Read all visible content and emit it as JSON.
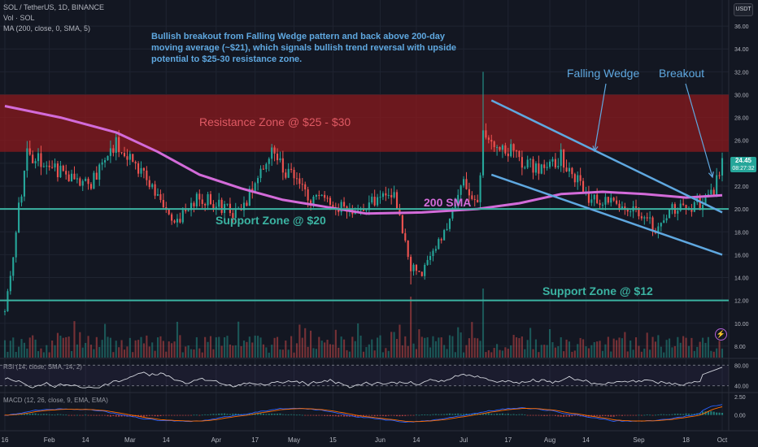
{
  "header": {
    "symbol_line": "SOL / TetherUS, 1D, BINANCE",
    "volume_line": "Vol · SOL",
    "ma_line": "MA (200, close, 0, SMA, 5)",
    "currency": "USDT"
  },
  "last_price": {
    "value": "24.45",
    "countdown": "08:27:32"
  },
  "indicators": {
    "rsi_label": "RSI (14, close, SMA, 14, 2)",
    "macd_label": "MACD (12, 26, close, 9, EMA, EMA)"
  },
  "colors": {
    "background": "#131722",
    "bull": "#26a69a",
    "bear": "#ef5350",
    "sma": "#d36bd9",
    "annotation_blue": "#5fa8e0",
    "support_teal": "#3bb3a2",
    "resistance_fill": "#8b1a1e"
  },
  "annotations": {
    "commentary": [
      "Bullish breakout from Falling Wedge pattern and back above 200-day",
      "moving average (~$21), which signals bullish trend reversal with upside",
      "potential to $25-30 resistance zone."
    ],
    "resistance_label": "Resistance Zone @ $25 - $30",
    "support20_label": "Support Zone @ $20",
    "support12_label": "Support Zone @ $12",
    "sma_label": "200 SMA",
    "wedge_label": "Falling Wedge",
    "breakout_label": "Breakout"
  },
  "chart_data": {
    "type": "candlestick",
    "title": "SOL / TetherUS, 1D, BINANCE",
    "y_scale": "linear",
    "ylim": [
      7,
      37
    ],
    "y_ticks": [
      8,
      10,
      12,
      14,
      16,
      18,
      20,
      22,
      24,
      26,
      28,
      30,
      32,
      34,
      36
    ],
    "y_tick_labels": [
      "8.00",
      "10.00",
      "12.00",
      "14.00",
      "16.00",
      "18.00",
      "20.00",
      "22.00",
      "24.00",
      "26.00",
      "28.00",
      "30.00",
      "32.00",
      "34.00",
      "36.00"
    ],
    "x_labels": [
      "16",
      "Feb",
      "14",
      "Mar",
      "14",
      "Apr",
      "17",
      "May",
      "15",
      "Jun",
      "14",
      "Jul",
      "17",
      "Aug",
      "14",
      "Sep",
      "18",
      "Oct"
    ],
    "x_label_days": [
      0,
      16,
      29,
      45,
      58,
      76,
      90,
      104,
      118,
      135,
      148,
      165,
      181,
      196,
      209,
      228,
      245,
      258
    ],
    "price_path_days": [
      0,
      3,
      5,
      8,
      15,
      30,
      40,
      52,
      60,
      70,
      85,
      95,
      110,
      125,
      140,
      146,
      150,
      155,
      165,
      170,
      172,
      176,
      180,
      190,
      200,
      210,
      220,
      230,
      235,
      240,
      250,
      255,
      258
    ],
    "price_path_close": [
      11,
      16,
      20,
      25,
      24,
      22,
      26,
      22.5,
      18.5,
      21,
      19.5,
      25,
      21,
      20,
      21.5,
      15,
      14.5,
      16.5,
      22,
      20,
      27,
      26,
      25.5,
      23.5,
      24.5,
      21,
      20.5,
      19.5,
      18,
      20,
      20.5,
      21.5,
      24.45
    ],
    "series": [
      {
        "name": "MA (200, close, 0, SMA, 5)",
        "x": [
          0,
          20,
          40,
          55,
          70,
          85,
          100,
          115,
          130,
          150,
          170,
          185,
          200,
          215,
          230,
          245,
          258
        ],
        "values": [
          29,
          28,
          26.7,
          25,
          23,
          21.8,
          20.8,
          20.2,
          19.6,
          19.7,
          20.0,
          20.5,
          21.3,
          21.5,
          21.3,
          21.0,
          21.2
        ]
      }
    ],
    "zones": [
      {
        "name": "Resistance Zone @ $25 - $30",
        "from": 25,
        "to": 30
      }
    ],
    "horizontal_levels": [
      {
        "name": "Support Zone @ $20",
        "value": 20
      },
      {
        "name": "Support Zone @ $12",
        "value": 12
      }
    ],
    "trendlines": [
      {
        "name": "wedge-upper",
        "x": [
          175,
          258
        ],
        "y": [
          29.5,
          19.7
        ]
      },
      {
        "name": "wedge-lower",
        "x": [
          175,
          258
        ],
        "y": [
          23,
          16
        ]
      }
    ],
    "last_price": 24.45,
    "rsi": {
      "levels": [
        40,
        80
      ],
      "tick_labels": [
        "40.00",
        "80.00"
      ],
      "range": [
        30,
        90
      ],
      "end_value": 75
    },
    "macd": {
      "tick_labels": [
        "0.00",
        "2.50"
      ],
      "range": [
        -1.8,
        2.6
      ]
    }
  }
}
